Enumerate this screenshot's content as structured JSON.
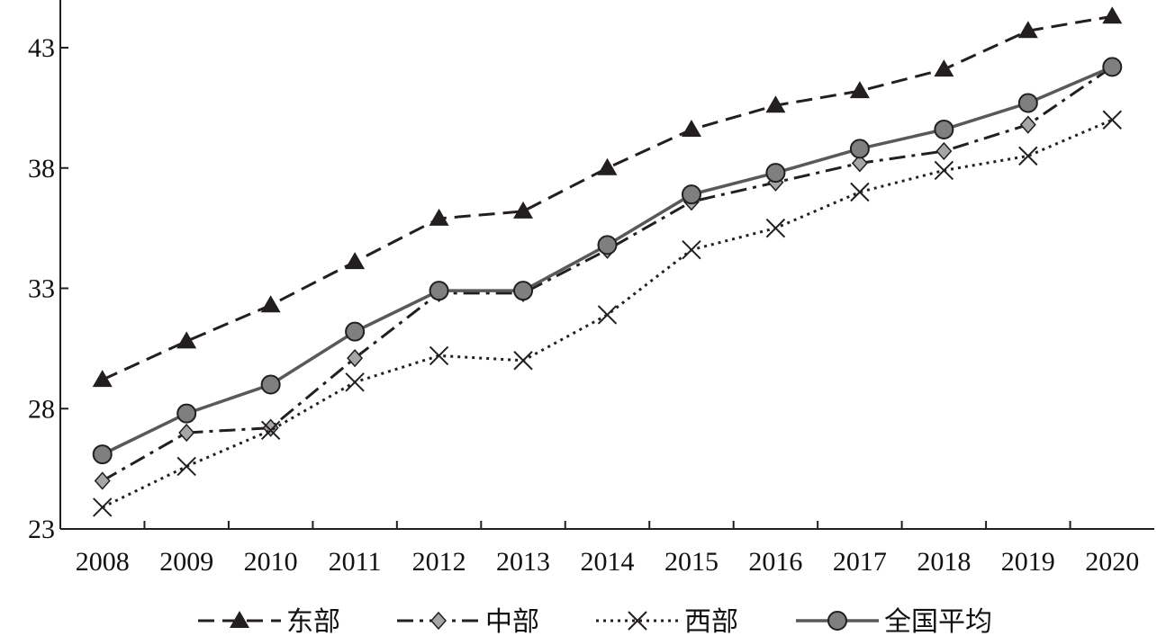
{
  "chart_data": {
    "type": "line",
    "title": "",
    "xlabel": "",
    "ylabel": "",
    "categories": [
      "2008",
      "2009",
      "2010",
      "2011",
      "2012",
      "2013",
      "2014",
      "2015",
      "2016",
      "2017",
      "2018",
      "2019",
      "2020"
    ],
    "ylim": [
      23,
      45
    ],
    "yticks": [
      "23",
      "28",
      "33",
      "38",
      "43"
    ],
    "grid": false,
    "legend_position": "bottom",
    "series": [
      {
        "name": "东部",
        "marker": "triangle",
        "line_style": "dashed",
        "color": "#231f20",
        "values": [
          29.2,
          30.8,
          32.3,
          34.1,
          35.9,
          36.2,
          38.0,
          39.6,
          40.6,
          41.2,
          42.1,
          43.7,
          44.3
        ]
      },
      {
        "name": "中部",
        "marker": "diamond",
        "line_style": "dash-dot",
        "color": "#231f20",
        "values": [
          25.0,
          27.0,
          27.2,
          30.1,
          32.8,
          32.8,
          34.6,
          36.6,
          37.4,
          38.2,
          38.7,
          39.8,
          42.2
        ]
      },
      {
        "name": "西部",
        "marker": "x",
        "line_style": "dotted",
        "color": "#231f20",
        "values": [
          23.9,
          25.6,
          27.1,
          29.1,
          30.2,
          30.0,
          31.9,
          34.6,
          35.5,
          37.0,
          37.9,
          38.5,
          40.0
        ]
      },
      {
        "name": "全国平均",
        "marker": "circle",
        "line_style": "solid",
        "color": "#595959",
        "values": [
          26.1,
          27.8,
          29.0,
          31.2,
          32.9,
          32.9,
          34.8,
          36.9,
          37.8,
          38.8,
          39.6,
          40.7,
          42.2
        ]
      }
    ]
  }
}
